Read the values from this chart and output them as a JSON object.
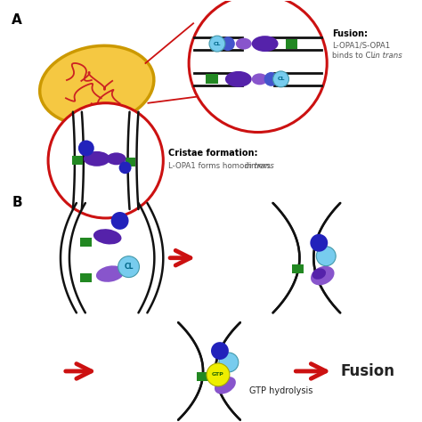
{
  "bg_color": "#ffffff",
  "purple_dark": "#5522aa",
  "purple_mid": "#8855cc",
  "purple_light": "#aa88dd",
  "blue_dark": "#2222bb",
  "blue_mid": "#4455cc",
  "cyan": "#77ccee",
  "green": "#228822",
  "yellow": "#eeee00",
  "red": "#cc1111",
  "mito_fill": "#f5c842",
  "mito_stroke": "#cc9900",
  "mem_color": "#111111",
  "text_dark": "#222222",
  "text_gray": "#555555",
  "label_a": "A",
  "label_b": "B",
  "fusion_title": "Fusion:",
  "fusion_line1": "L-OPA1/S-OPA1",
  "fusion_line2a": "binds to CL ",
  "fusion_line2b": "in trans",
  "cristae_line1": "Cristae formation:",
  "cristae_line2a": "L-OPA1 forms homodimers ",
  "cristae_line2b": "in trans",
  "gtp_label": "GTP hydrolysis",
  "fusion_label": "Fusion",
  "cl_text": "CL",
  "gtp_text": "GTP"
}
